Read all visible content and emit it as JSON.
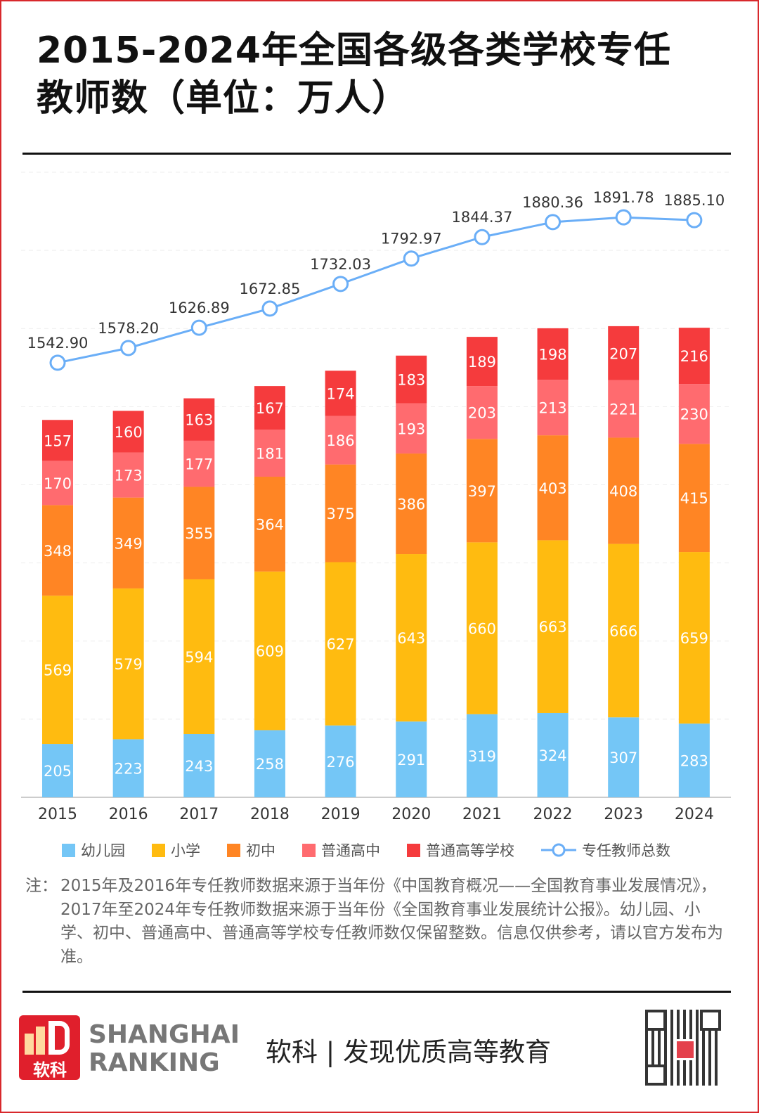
{
  "title": "2015-2024年全国各级各类学校专任教师数（单位：万人）",
  "title_lines": [
    "2015-2024年全国各级各类学校专任",
    "教师数（单位：万人）"
  ],
  "chart_data": {
    "type": "bar",
    "stacked": true,
    "categories": [
      "2015",
      "2016",
      "2017",
      "2018",
      "2019",
      "2020",
      "2021",
      "2022",
      "2023",
      "2024"
    ],
    "series": [
      {
        "name": "幼儿园",
        "color": "#74C6F6",
        "values": [
          205,
          223,
          243,
          258,
          276,
          291,
          319,
          324,
          307,
          283
        ]
      },
      {
        "name": "小学",
        "color": "#FFBB10",
        "values": [
          569,
          579,
          594,
          609,
          627,
          643,
          660,
          663,
          666,
          659
        ]
      },
      {
        "name": "初中",
        "color": "#FF8524",
        "values": [
          348,
          349,
          355,
          364,
          375,
          386,
          397,
          403,
          408,
          415
        ]
      },
      {
        "name": "普通高中",
        "color": "#FF6B6F",
        "values": [
          170,
          173,
          177,
          181,
          186,
          193,
          203,
          213,
          221,
          230
        ]
      },
      {
        "name": "普通高等学校",
        "color": "#F53B3D",
        "values": [
          157,
          160,
          163,
          167,
          174,
          183,
          189,
          198,
          207,
          216
        ]
      }
    ],
    "line_series": {
      "name": "专任教师总数",
      "color": "#6AAEF7",
      "type": "line",
      "axis": "secondary",
      "values": [
        1542.9,
        1578.2,
        1626.89,
        1672.85,
        1732.03,
        1792.97,
        1844.37,
        1880.36,
        1891.78,
        1885.1
      ],
      "labels": [
        "1542.90",
        "1578.20",
        "1626.89",
        "1672.85",
        "1732.03",
        "1792.97",
        "1844.37",
        "1880.36",
        "1891.78",
        "1885.10"
      ]
    },
    "ylim": [
      0,
      2400
    ],
    "y2lim": [
      500,
      2000
    ],
    "grid": true,
    "legend_position": "bottom"
  },
  "note": {
    "label": "注：",
    "text": "2015年及2016年专任教师数据来源于当年份《中国教育概况——全国教育事业发展情况》，2017年至2024年专任教师数据来源于当年份《全国教育事业发展统计公报》。幼儿园、小学、初中、普通高中、普通高等学校专任教师数仅保留整数。信息仅供参考，请以官方发布为准。"
  },
  "footer": {
    "brand_line1": "SHANGHAI",
    "brand_line2": "RANKING",
    "logo_text": "软科",
    "slogan": "软科 | 发现优质高等教育"
  }
}
